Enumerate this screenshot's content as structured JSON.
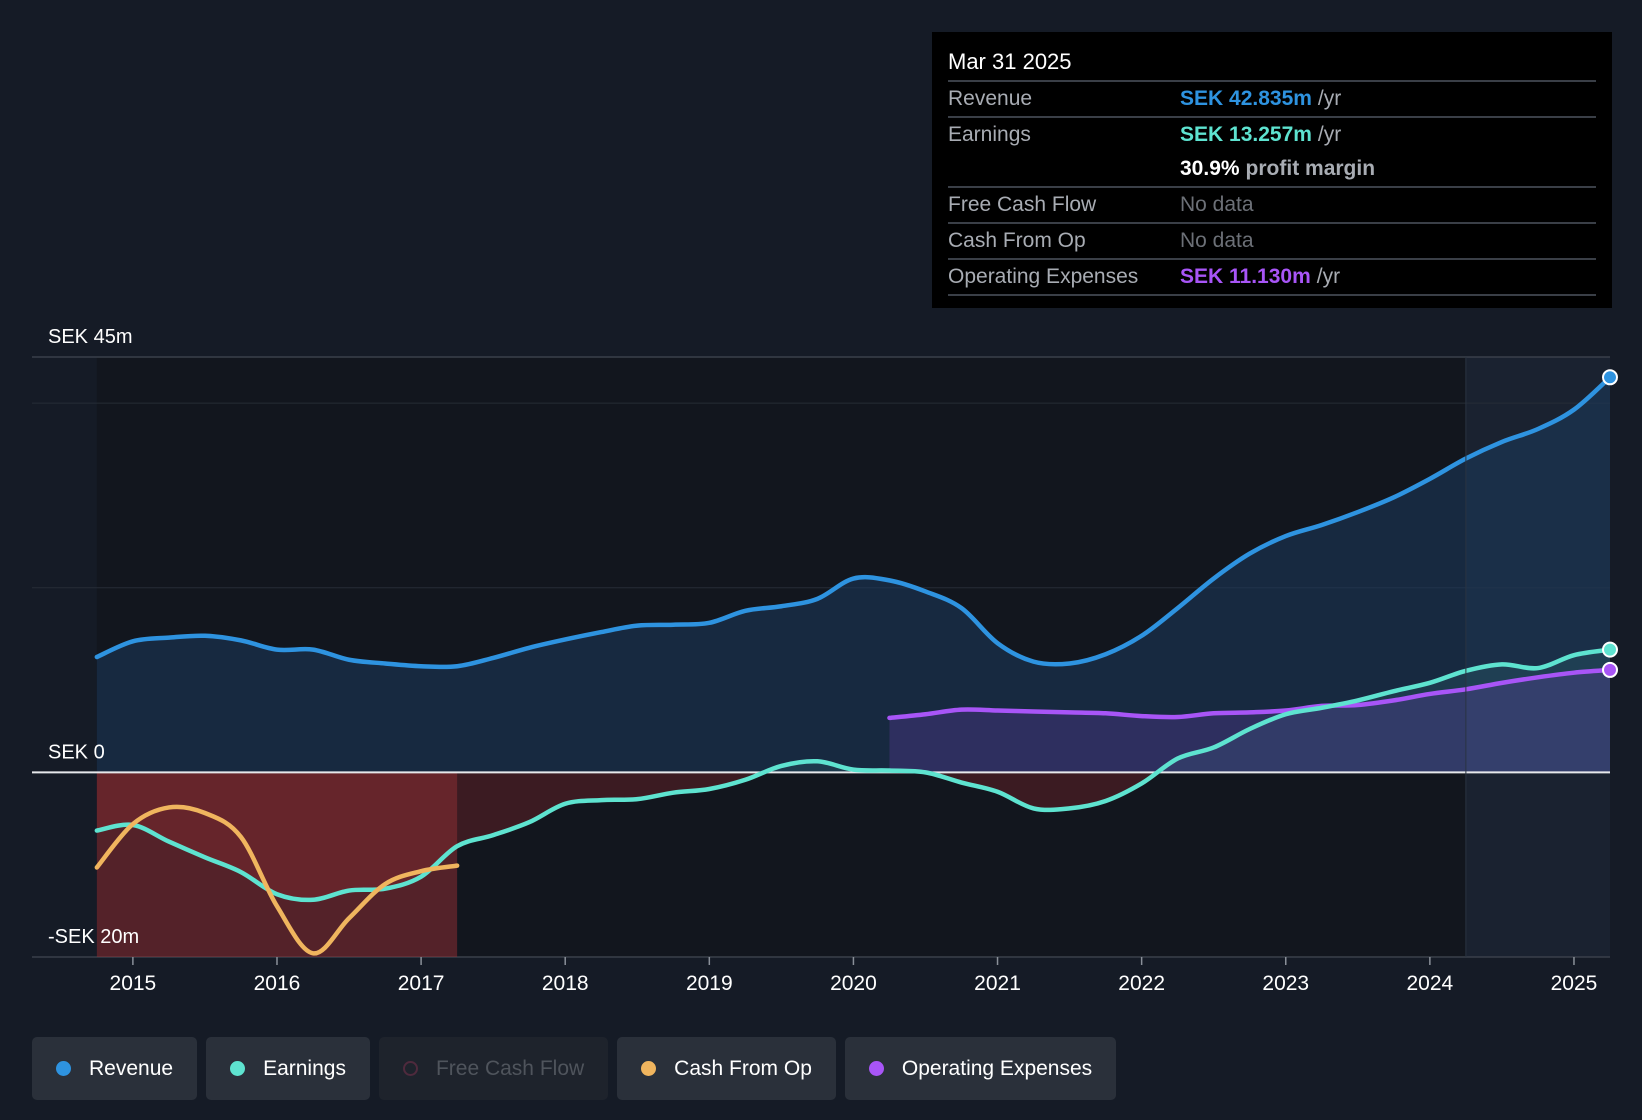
{
  "tooltip": {
    "date": "Mar 31 2025",
    "rows": [
      {
        "label": "Revenue",
        "value": "SEK 42.835m",
        "unit": "/yr",
        "color": "#2e93e0"
      },
      {
        "label": "Earnings",
        "value": "SEK 13.257m",
        "unit": "/yr",
        "color": "#5ee3d0"
      },
      {
        "margin_value": "30.9%",
        "margin_label": "profit margin"
      },
      {
        "label": "Free Cash Flow",
        "nodata": "No data"
      },
      {
        "label": "Cash From Op",
        "nodata": "No data"
      },
      {
        "label": "Operating Expenses",
        "value": "SEK 11.130m",
        "unit": "/yr",
        "color": "#a855f7"
      }
    ]
  },
  "legend": [
    {
      "label": "Revenue",
      "color": "#2e93e0",
      "active": true
    },
    {
      "label": "Earnings",
      "color": "#5ee3d0",
      "active": true
    },
    {
      "label": "Free Cash Flow",
      "color": "#e0457b",
      "active": false
    },
    {
      "label": "Cash From Op",
      "color": "#f0b55e",
      "active": true
    },
    {
      "label": "Operating Expenses",
      "color": "#a855f7",
      "active": true
    }
  ],
  "chart_data": {
    "type": "line",
    "title": "",
    "xlabel": "",
    "ylabel": "",
    "y_axis_labels": [
      {
        "value": 45,
        "text": "SEK 45m"
      },
      {
        "value": 0,
        "text": "SEK 0"
      },
      {
        "value": -20,
        "text": "-SEK 20m"
      }
    ],
    "ylim": [
      -20,
      45
    ],
    "xlim": [
      2014.3,
      2025.25
    ],
    "x_ticks": [
      2015,
      2016,
      2017,
      2018,
      2019,
      2020,
      2021,
      2022,
      2023,
      2024,
      2025
    ],
    "x_tick_labels": [
      "2015",
      "2016",
      "2017",
      "2018",
      "2019",
      "2020",
      "2021",
      "2022",
      "2023",
      "2024",
      "2025"
    ],
    "forecast_start": 2024.25,
    "grid_values": [
      45,
      40,
      20,
      0,
      -20
    ],
    "series": [
      {
        "name": "Revenue",
        "color": "#2e93e0",
        "x": [
          2014.75,
          2015.0,
          2015.25,
          2015.5,
          2015.75,
          2016.0,
          2016.25,
          2016.5,
          2016.75,
          2017.0,
          2017.25,
          2017.5,
          2017.75,
          2018.0,
          2018.25,
          2018.5,
          2018.75,
          2019.0,
          2019.25,
          2019.5,
          2019.75,
          2020.0,
          2020.25,
          2020.5,
          2020.75,
          2021.0,
          2021.25,
          2021.5,
          2021.75,
          2022.0,
          2022.25,
          2022.5,
          2022.75,
          2023.0,
          2023.25,
          2023.5,
          2023.75,
          2024.0,
          2024.25,
          2024.5,
          2024.75,
          2025.0,
          2025.25
        ],
        "values": [
          12.5,
          14.2,
          14.6,
          14.8,
          14.3,
          13.3,
          13.3,
          12.2,
          11.8,
          11.5,
          11.5,
          12.4,
          13.5,
          14.4,
          15.2,
          15.9,
          16.0,
          16.2,
          17.5,
          18.0,
          18.8,
          21.0,
          20.8,
          19.6,
          17.8,
          14.0,
          12.0,
          11.8,
          12.8,
          14.8,
          17.8,
          21.0,
          23.7,
          25.6,
          26.8,
          28.2,
          29.8,
          31.8,
          34.0,
          35.8,
          37.2,
          39.3,
          42.8
        ]
      },
      {
        "name": "Earnings",
        "color": "#5ee3d0",
        "x": [
          2014.75,
          2015.0,
          2015.25,
          2015.5,
          2015.75,
          2016.0,
          2016.25,
          2016.5,
          2016.75,
          2017.0,
          2017.25,
          2017.5,
          2017.75,
          2018.0,
          2018.25,
          2018.5,
          2018.75,
          2019.0,
          2019.25,
          2019.5,
          2019.75,
          2020.0,
          2020.25,
          2020.5,
          2020.75,
          2021.0,
          2021.25,
          2021.5,
          2021.75,
          2022.0,
          2022.25,
          2022.5,
          2022.75,
          2023.0,
          2023.25,
          2023.5,
          2023.75,
          2024.0,
          2024.25,
          2024.5,
          2024.75,
          2025.0,
          2025.25
        ],
        "values": [
          -6.3,
          -5.7,
          -7.5,
          -9.2,
          -10.8,
          -13.2,
          -13.8,
          -12.8,
          -12.6,
          -11.3,
          -8.0,
          -6.8,
          -5.4,
          -3.4,
          -3.0,
          -2.9,
          -2.2,
          -1.8,
          -0.8,
          0.7,
          1.2,
          0.3,
          0.2,
          0.0,
          -1.1,
          -2.1,
          -3.9,
          -3.9,
          -3.1,
          -1.2,
          1.5,
          2.7,
          4.7,
          6.3,
          7.0,
          7.8,
          8.8,
          9.7,
          11.0,
          11.7,
          11.3,
          12.7,
          13.3
        ]
      },
      {
        "name": "Cash From Op",
        "color": "#f0b55e",
        "x": [
          2014.75,
          2015.0,
          2015.25,
          2015.5,
          2015.75,
          2016.0,
          2016.25,
          2016.5,
          2016.75,
          2017.0,
          2017.25
        ],
        "values": [
          -10.3,
          -5.6,
          -3.8,
          -4.4,
          -7.0,
          -14.5,
          -19.6,
          -15.8,
          -12.1,
          -10.7,
          -10.1
        ]
      },
      {
        "name": "Operating Expenses",
        "color": "#a855f7",
        "x": [
          2020.25,
          2020.5,
          2020.75,
          2021.0,
          2021.25,
          2021.5,
          2021.75,
          2022.0,
          2022.25,
          2022.5,
          2022.75,
          2023.0,
          2023.25,
          2023.5,
          2023.75,
          2024.0,
          2024.25,
          2024.5,
          2024.75,
          2025.0,
          2025.25
        ],
        "values": [
          5.9,
          6.3,
          6.8,
          6.7,
          6.6,
          6.5,
          6.4,
          6.1,
          6.0,
          6.4,
          6.5,
          6.7,
          7.2,
          7.3,
          7.8,
          8.5,
          9.0,
          9.7,
          10.3,
          10.8,
          11.1
        ]
      }
    ]
  }
}
